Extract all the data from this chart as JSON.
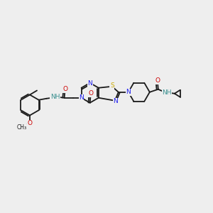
{
  "bg_color": "#eeeeee",
  "bond_color": "#1a1a1a",
  "atom_colors": {
    "N": "#1a1aee",
    "O": "#cc0000",
    "S": "#ccaa00",
    "NH": "#3a9090",
    "C": "#1a1a1a"
  },
  "figsize": [
    3.0,
    3.0
  ],
  "dpi": 100
}
